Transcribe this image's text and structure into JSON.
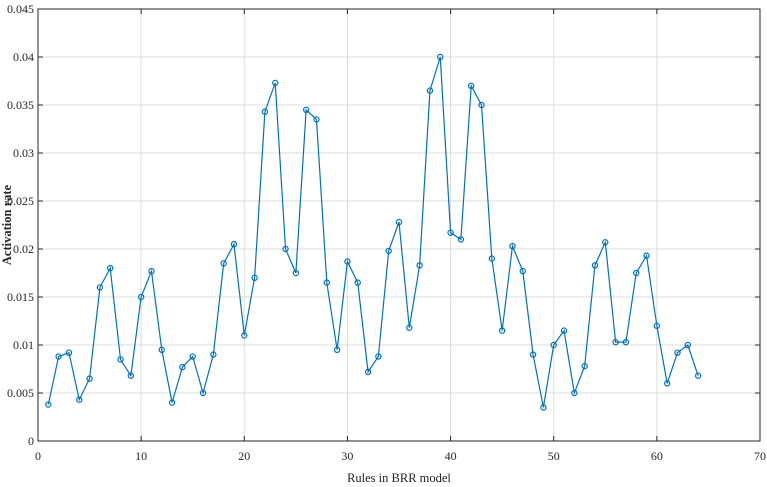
{
  "chart_data": {
    "type": "line",
    "xlabel": "Rules in BRR model",
    "ylabel": "Activation rate",
    "xlim": [
      0,
      70
    ],
    "ylim": [
      0,
      0.045
    ],
    "grid": true,
    "x_ticks": [
      0,
      10,
      20,
      30,
      40,
      50,
      60,
      70
    ],
    "y_ticks": [
      0,
      0.005,
      0.01,
      0.015,
      0.02,
      0.025,
      0.03,
      0.035,
      0.04,
      0.045
    ],
    "x_tick_labels": [
      "0",
      "10",
      "20",
      "30",
      "40",
      "50",
      "60",
      "70"
    ],
    "y_tick_labels": [
      "0",
      "0.005",
      "0.01",
      "0.015",
      "0.02",
      "0.025",
      "0.03",
      "0.035",
      "0.04",
      "0.045"
    ],
    "line_color": "#0072BD",
    "marker": "circle",
    "series": [
      {
        "x": [
          1,
          2,
          3,
          4,
          5,
          6,
          7,
          8,
          9,
          10,
          11,
          12,
          13,
          14,
          15,
          16,
          17,
          18,
          19,
          20,
          21,
          22,
          23,
          24,
          25,
          26,
          27,
          28,
          29,
          30,
          31,
          32,
          33,
          34,
          35,
          36,
          37,
          38,
          39,
          40,
          41,
          42,
          43,
          44,
          45,
          46,
          47,
          48,
          49,
          50,
          51,
          52,
          53,
          54,
          55,
          56,
          57,
          58,
          59,
          60,
          61,
          62,
          63,
          64
        ],
        "values": [
          0.0038,
          0.0088,
          0.0092,
          0.0043,
          0.0065,
          0.016,
          0.018,
          0.0085,
          0.0068,
          0.015,
          0.0177,
          0.0095,
          0.004,
          0.0077,
          0.0088,
          0.005,
          0.009,
          0.0185,
          0.0205,
          0.011,
          0.017,
          0.0343,
          0.0373,
          0.02,
          0.0175,
          0.0345,
          0.0335,
          0.0165,
          0.0095,
          0.0187,
          0.0165,
          0.0072,
          0.0088,
          0.0198,
          0.0228,
          0.0118,
          0.0183,
          0.0365,
          0.04,
          0.0217,
          0.021,
          0.037,
          0.035,
          0.019,
          0.0115,
          0.0203,
          0.0177,
          0.009,
          0.0035,
          0.01,
          0.0115,
          0.005,
          0.0078,
          0.0183,
          0.0207,
          0.0103,
          0.0103,
          0.0175,
          0.0193,
          0.012,
          0.006,
          0.0092,
          0.01,
          0.0068
        ]
      }
    ]
  }
}
